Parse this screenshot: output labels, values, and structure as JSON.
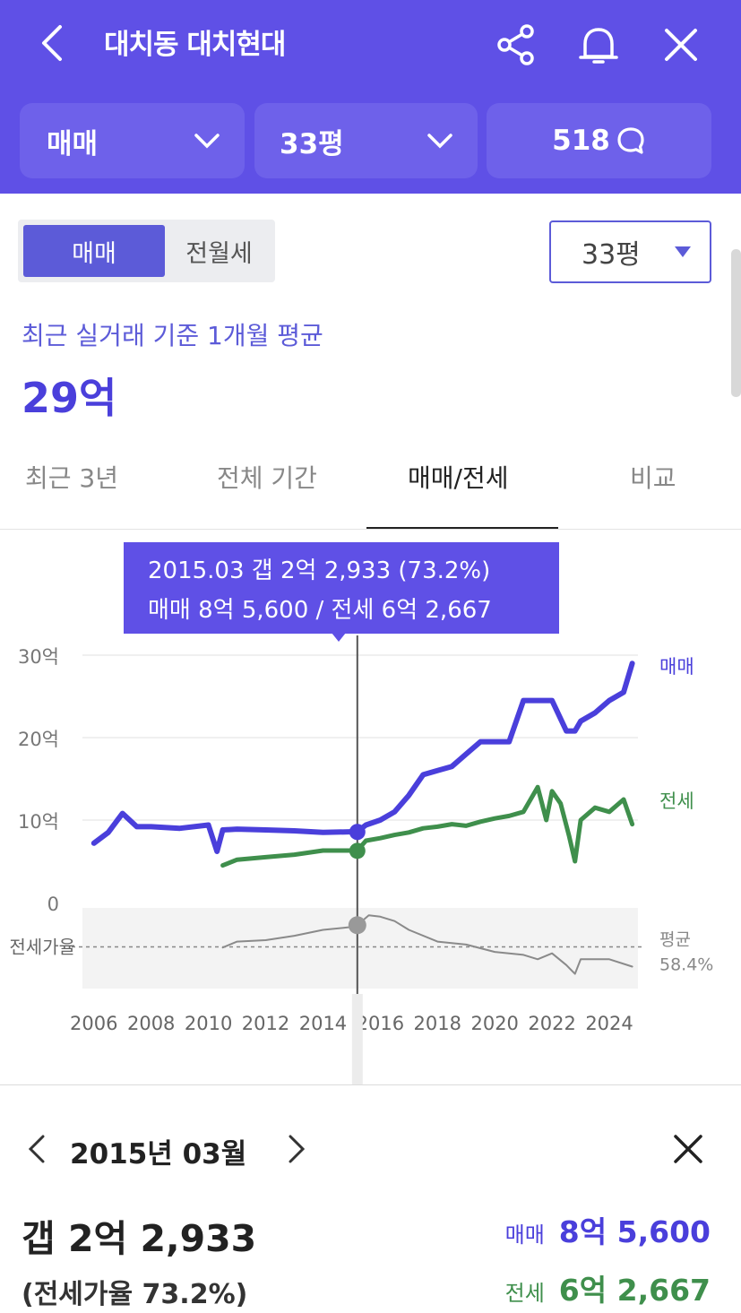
{
  "header": {
    "title": "대치동 대치현대",
    "deal_type": "매매",
    "size": "33평",
    "comment_count": "518"
  },
  "segment": {
    "active": "매매",
    "inactive": "전월세"
  },
  "area_select": "33평",
  "summary": {
    "label": "최근 실거래 기준 1개월 평균",
    "value": "29억"
  },
  "tabs": [
    "최근 3년",
    "전체 기간",
    "매매/전세",
    "비교"
  ],
  "tooltip": {
    "line1": "2015.03  갭 2억 2,933 (73.2%)",
    "line2": "매매 8억 5,600 / 전세 6억 2,667"
  },
  "colors": {
    "brand": "#5f50e6",
    "sale": "#4a3fdb",
    "jeonse": "#3f8f4c",
    "ratio": "#8a8a8a"
  },
  "chart_data": {
    "type": "line",
    "yticks": [
      "30억",
      "20억",
      "10억",
      "0"
    ],
    "ylim": [
      0,
      30
    ],
    "xticks": [
      "2006",
      "2008",
      "2010",
      "2012",
      "2014",
      "2016",
      "2018",
      "2020",
      "2022",
      "2024"
    ],
    "ratio_label": "전세가율",
    "avg_label": "평균",
    "avg_value": "58.4%",
    "series": [
      {
        "name": "매매",
        "x": [
          2006.0,
          2006.5,
          2007.0,
          2007.5,
          2008.0,
          2009.0,
          2010.0,
          2010.3,
          2010.5,
          2011.0,
          2012.0,
          2013.0,
          2014.0,
          2015.2,
          2015.5,
          2016.0,
          2016.5,
          2017.0,
          2017.5,
          2018.0,
          2018.5,
          2019.0,
          2019.5,
          2020.0,
          2020.5,
          2021.0,
          2021.5,
          2022.0,
          2022.5,
          2022.8,
          2023.0,
          2023.5,
          2024.0,
          2024.5,
          2024.8
        ],
        "y": [
          7.2,
          8.5,
          10.8,
          9.2,
          9.2,
          9.0,
          9.4,
          6.2,
          8.8,
          8.9,
          8.8,
          8.7,
          8.5,
          8.6,
          9.4,
          10.0,
          11.0,
          13.0,
          15.5,
          16.0,
          16.5,
          18.0,
          19.5,
          19.5,
          19.5,
          24.5,
          24.5,
          24.5,
          20.8,
          20.8,
          22.0,
          23.0,
          24.5,
          25.5,
          29.0
        ]
      },
      {
        "name": "전세",
        "x": [
          2010.5,
          2011.0,
          2012.0,
          2013.0,
          2014.0,
          2015.2,
          2015.5,
          2016.0,
          2016.5,
          2017.0,
          2017.5,
          2018.0,
          2018.5,
          2019.0,
          2019.5,
          2020.0,
          2020.5,
          2021.0,
          2021.5,
          2021.8,
          2022.0,
          2022.3,
          2022.6,
          2022.8,
          2023.0,
          2023.5,
          2024.0,
          2024.5,
          2024.8
        ],
        "y": [
          4.5,
          5.2,
          5.5,
          5.8,
          6.3,
          6.3,
          7.5,
          7.8,
          8.2,
          8.5,
          9.0,
          9.2,
          9.5,
          9.3,
          9.8,
          10.2,
          10.5,
          11.0,
          14.0,
          10.0,
          13.5,
          12.0,
          8.0,
          5.0,
          10.0,
          11.5,
          11.0,
          12.5,
          9.5
        ]
      },
      {
        "name": "전세가율",
        "x": [
          2010.5,
          2011.0,
          2012.0,
          2013.0,
          2014.0,
          2015.0,
          2015.2,
          2015.6,
          2016.0,
          2016.5,
          2017.0,
          2018.0,
          2019.0,
          2020.0,
          2021.0,
          2021.5,
          2022.0,
          2022.5,
          2022.8,
          2023.0,
          2024.0,
          2024.8
        ],
        "y": [
          58,
          62,
          63,
          66,
          70,
          72,
          73.2,
          80,
          79,
          76,
          70,
          62,
          60,
          55,
          53,
          50,
          54,
          46,
          40,
          50,
          50,
          45
        ]
      }
    ],
    "selected": {
      "x": 2015.2,
      "sale": 8.56,
      "jeonse": 6.2667,
      "ratio": 73.2
    }
  },
  "detail": {
    "date": "2015년 03월",
    "gap": "갭 2억 2,933",
    "ratio": "(전세가율 73.2%)",
    "sale_label": "매매",
    "sale_value": "8억 5,600",
    "jeonse_label": "전세",
    "jeonse_value": "6억 2,667"
  }
}
